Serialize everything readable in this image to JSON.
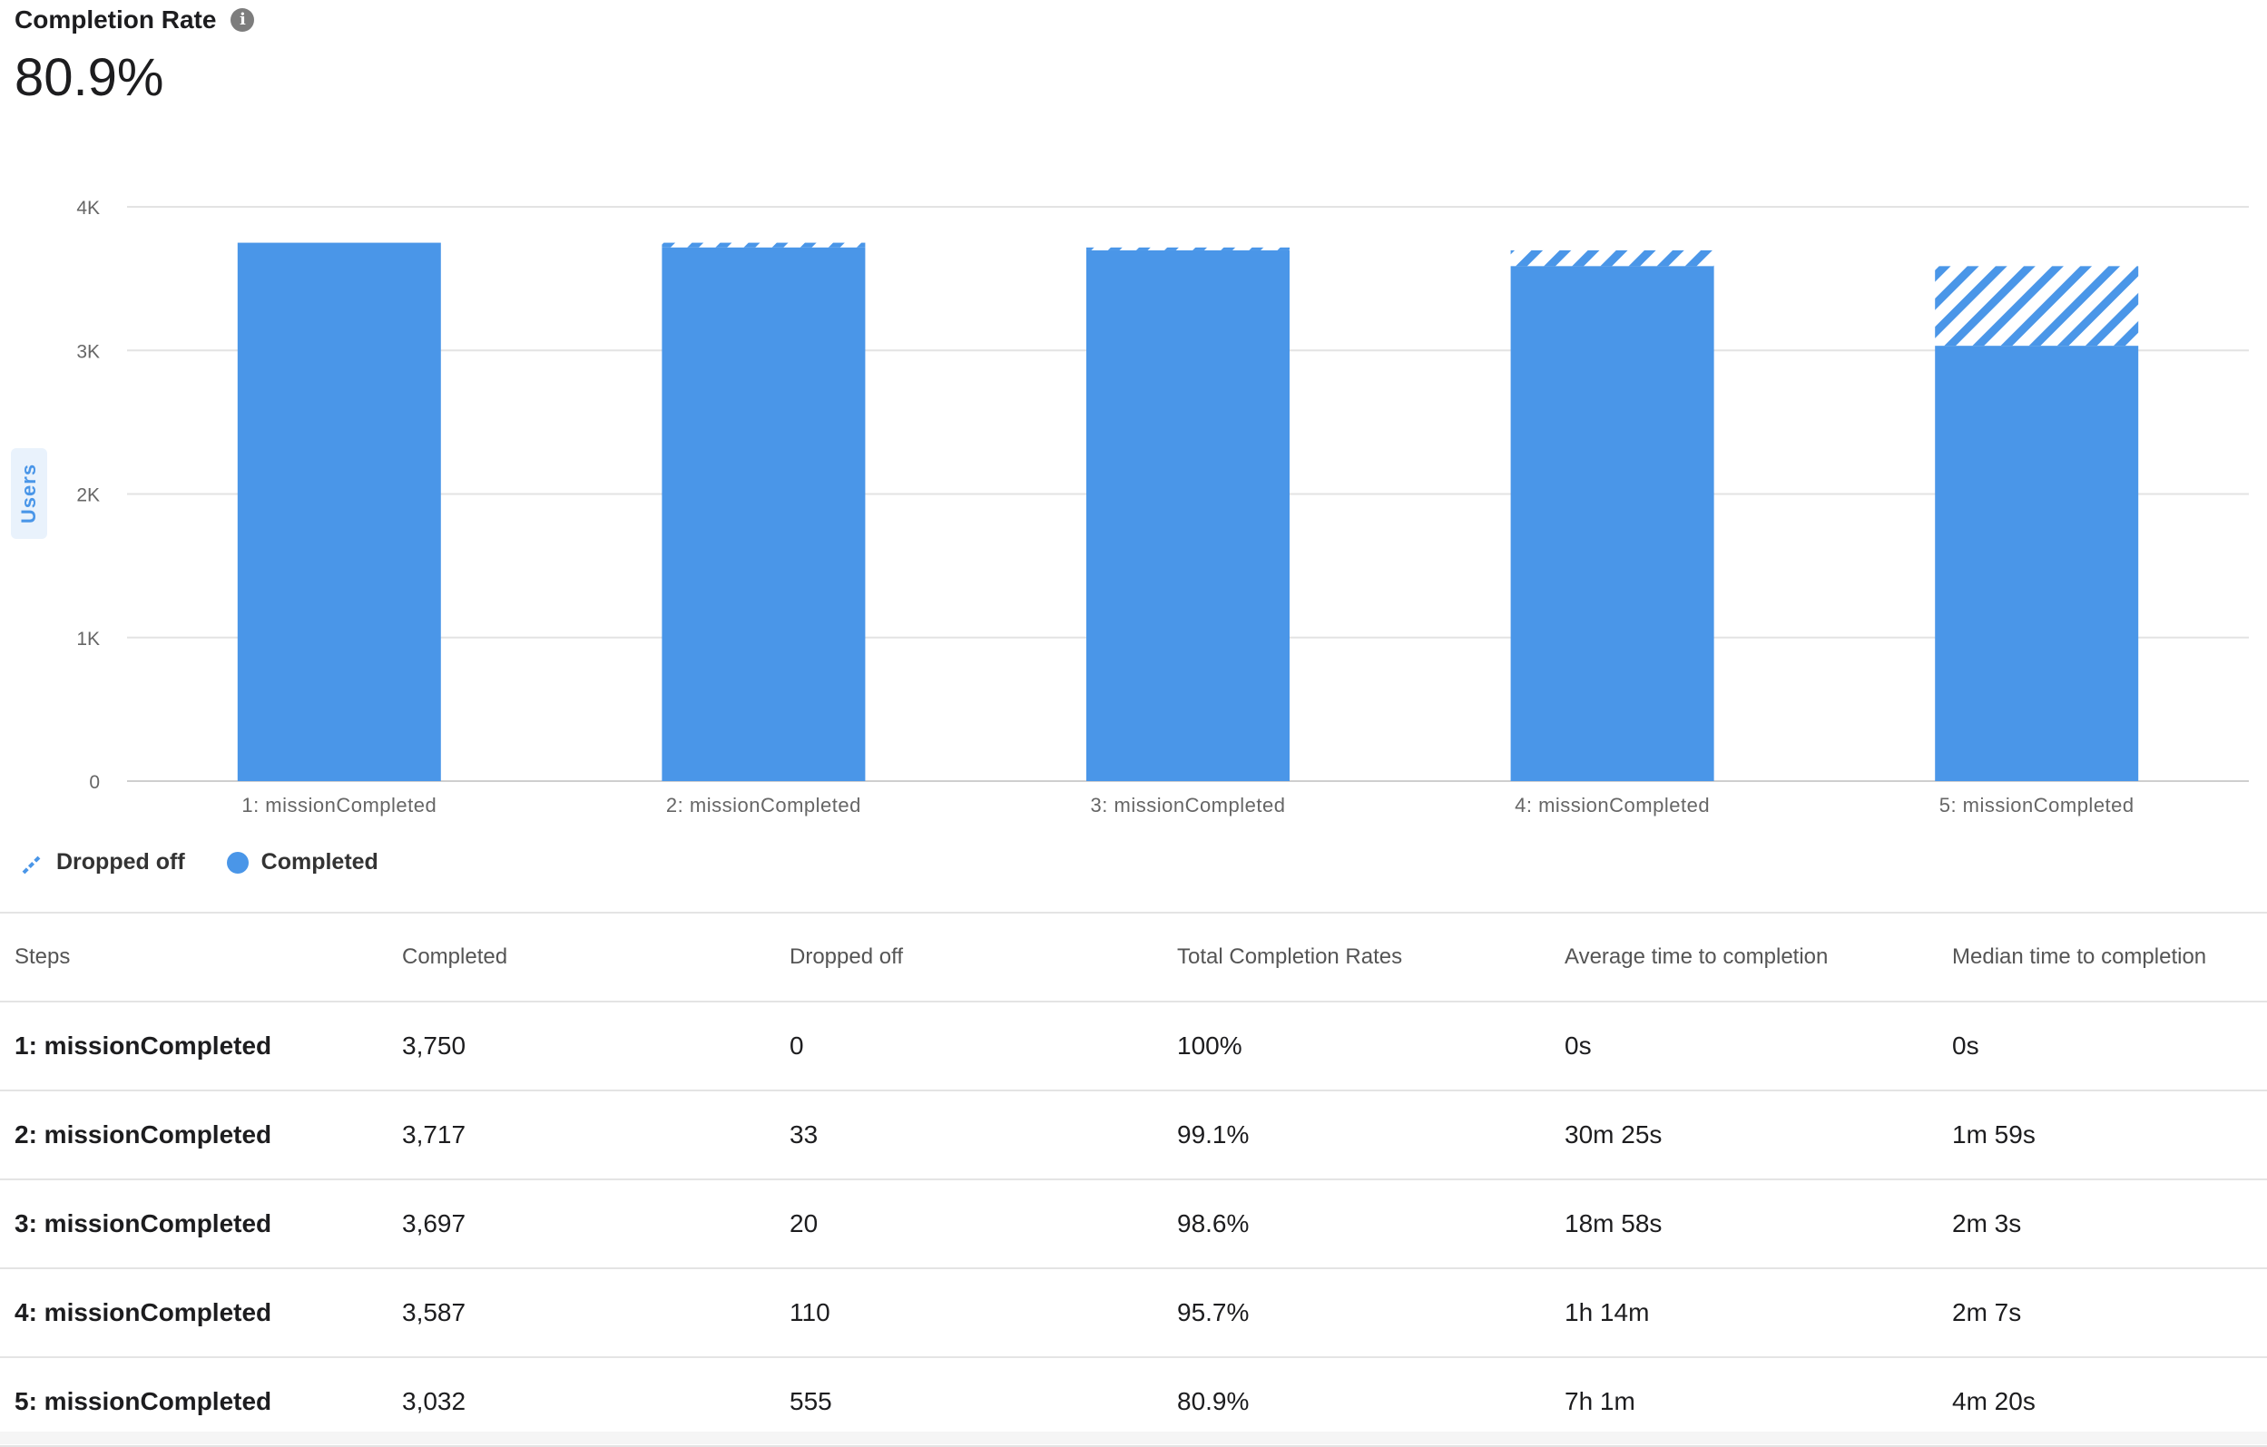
{
  "header": {
    "title": "Completion Rate",
    "info_icon": "info-icon",
    "value": "80.9%"
  },
  "chart_data": {
    "type": "bar",
    "stacked": true,
    "categories": [
      "1: missionCompleted",
      "2: missionCompleted",
      "3: missionCompleted",
      "4: missionCompleted",
      "5: missionCompleted"
    ],
    "series": [
      {
        "name": "Completed",
        "values": [
          3750,
          3717,
          3697,
          3587,
          3032
        ],
        "color": "#4a96e8"
      },
      {
        "name": "Dropped off",
        "values": [
          0,
          33,
          20,
          110,
          555
        ],
        "color": "#4a96e8",
        "pattern": "diagonal-stripes"
      }
    ],
    "y_ticks": [
      "0",
      "1K",
      "2K",
      "3K",
      "4K"
    ],
    "ylabel": "Users",
    "ylim": [
      0,
      4000
    ],
    "grid": true,
    "legend_position": "bottom-left"
  },
  "legend": {
    "dropped_label": "Dropped off",
    "completed_label": "Completed"
  },
  "table": {
    "headers": [
      "Steps",
      "Completed",
      "Dropped off",
      "Total Completion Rates",
      "Average time to completion",
      "Median time to completion"
    ],
    "rows": [
      [
        "1: missionCompleted",
        "3,750",
        "0",
        "100%",
        "0s",
        "0s"
      ],
      [
        "2: missionCompleted",
        "3,717",
        "33",
        "99.1%",
        "30m 25s",
        "1m 59s"
      ],
      [
        "3: missionCompleted",
        "3,697",
        "20",
        "98.6%",
        "18m 58s",
        "2m 3s"
      ],
      [
        "4: missionCompleted",
        "3,587",
        "110",
        "95.7%",
        "1h 14m",
        "2m 7s"
      ],
      [
        "5: missionCompleted",
        "3,032",
        "555",
        "80.9%",
        "7h 1m",
        "4m 20s"
      ]
    ]
  }
}
